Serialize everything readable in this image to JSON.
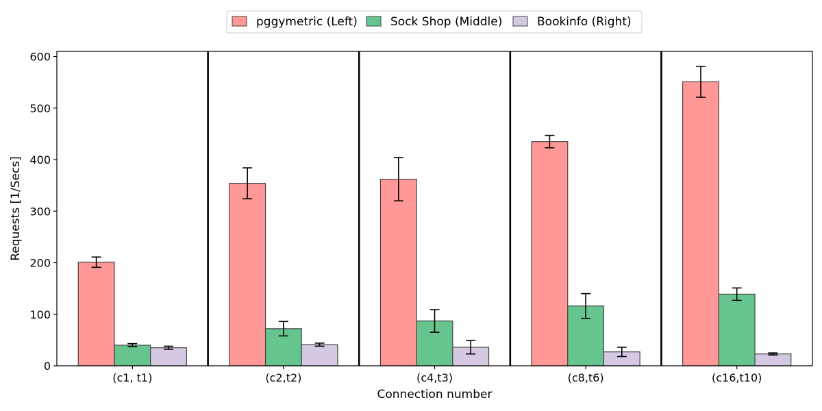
{
  "chart_data": {
    "type": "bar",
    "title": "",
    "xlabel": "Connection number",
    "ylabel": "Requests [1/Secs]",
    "categories": [
      "(c1, t1)",
      "(c2,t2)",
      "(c4,t3)",
      "(c8,t6)",
      "(c16,t10)"
    ],
    "ylim": [
      0,
      610
    ],
    "yticks": [
      0,
      100,
      200,
      300,
      400,
      500,
      600
    ],
    "grid": false,
    "legend_position": "top-center",
    "series": [
      {
        "name": "pggymetric (Left)",
        "color": "#ff9896",
        "values": [
          201,
          354,
          362,
          435,
          551
        ],
        "errors": [
          10,
          30,
          42,
          12,
          30
        ]
      },
      {
        "name": "Sock Shop (Middle)",
        "color": "#66c48f",
        "values": [
          40,
          72,
          87,
          116,
          139
        ],
        "errors": [
          3,
          14,
          22,
          24,
          12
        ]
      },
      {
        "name": "Bookinfo (Right)",
        "color": "#d5c9e2",
        "values": [
          35,
          41,
          36,
          27,
          23
        ],
        "errors": [
          3,
          3,
          13,
          9,
          2
        ]
      }
    ]
  }
}
